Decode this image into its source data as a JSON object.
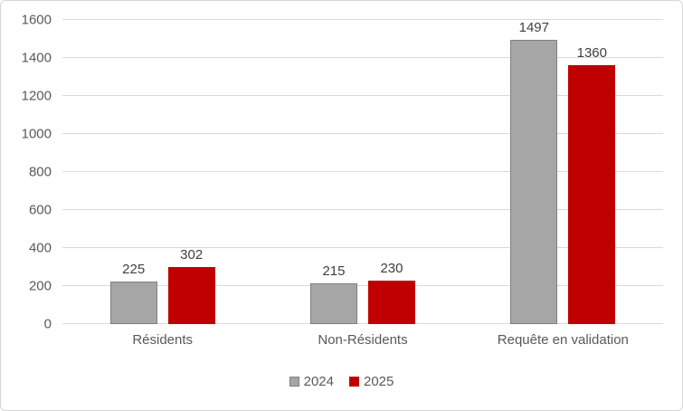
{
  "chart_data": {
    "type": "bar",
    "title": "",
    "categories": [
      "Résidents",
      "Non-Résidents",
      "Requête en validation"
    ],
    "series": [
      {
        "name": "2024",
        "color": "#a6a6a6",
        "border_color": "#808080",
        "values": [
          225,
          215,
          1497
        ]
      },
      {
        "name": "2025",
        "color": "#c00000",
        "border_color": "#c00000",
        "values": [
          302,
          230,
          1360
        ]
      }
    ],
    "ylim": [
      0,
      1600
    ],
    "yticks": [
      0,
      200,
      400,
      600,
      800,
      1000,
      1200,
      1400,
      1600
    ],
    "grid": true,
    "data_labels": true,
    "legend_position": "bottom"
  },
  "style_colors": {
    "gridline": "#d9d9d9",
    "axis_text": "#595959",
    "category_text": "#595959",
    "value_label_text": "#404040",
    "legend_text": "#595959",
    "chart_border": "#d6d6d6",
    "background": "#ffffff"
  }
}
